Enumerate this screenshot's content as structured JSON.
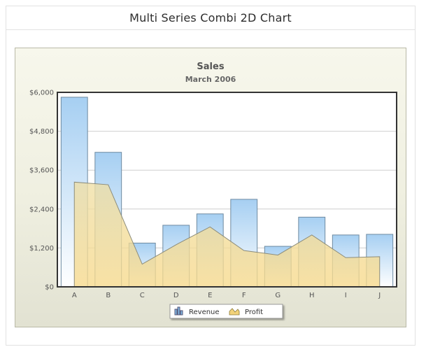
{
  "page": {
    "title": "Multi Series Combi 2D Chart"
  },
  "colors": {
    "revenue_top": "#a6cff2",
    "revenue_bottom": "#ffffff",
    "revenue_stroke": "#6e8aa0",
    "profit_top": "#efdfa6",
    "profit_bottom": "#f7d98a",
    "profit_stroke": "#8c8c7a",
    "grid": "#cfcfcf",
    "axis": "#333333"
  },
  "chart_data": {
    "type": "bar",
    "title": "Sales",
    "subtitle": "March 2006",
    "categories": [
      "A",
      "B",
      "C",
      "D",
      "E",
      "F",
      "G",
      "H",
      "I",
      "J"
    ],
    "series": [
      {
        "name": "Revenue",
        "render": "column",
        "values": [
          5850,
          4150,
          1350,
          1900,
          2250,
          2700,
          1250,
          2150,
          1600,
          1620
        ]
      },
      {
        "name": "Profit",
        "render": "area",
        "values": [
          3230,
          3150,
          700,
          1300,
          1850,
          1120,
          980,
          1600,
          900,
          930
        ]
      }
    ],
    "y_ticks": [
      "$0",
      "$1,200",
      "$2,400",
      "$3,600",
      "$4,800",
      "$6,000"
    ],
    "ylim": [
      0,
      6000
    ],
    "grid": true,
    "legend": {
      "placement": "bottom-center",
      "items": [
        "Revenue",
        "Profit"
      ]
    }
  }
}
